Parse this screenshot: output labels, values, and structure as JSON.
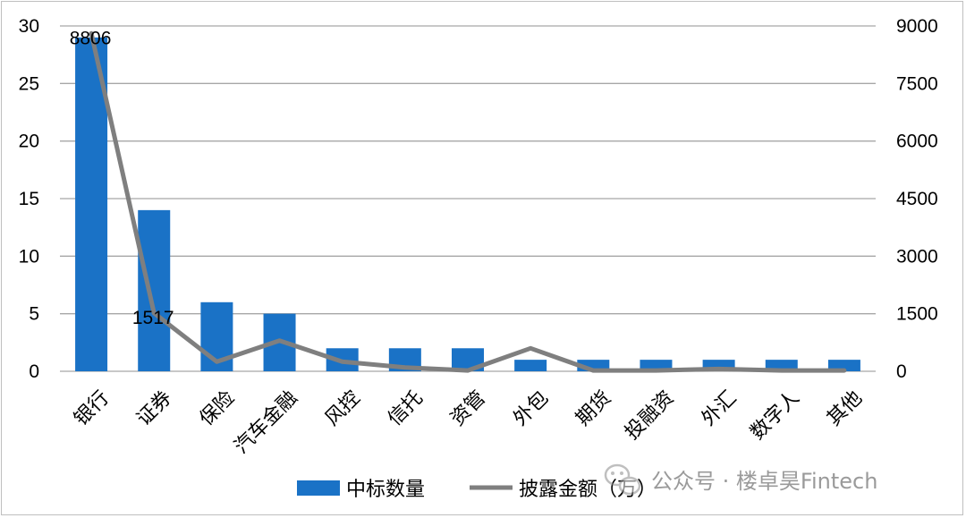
{
  "chart_data": {
    "type": "bar+line",
    "categories": [
      "银行",
      "证券",
      "保险",
      "汽车金融",
      "风控",
      "信托",
      "资管",
      "外包",
      "期货",
      "投融资",
      "外汇",
      "数字人",
      "其他"
    ],
    "series": [
      {
        "name": "中标数量",
        "type": "bar",
        "axis": "left",
        "color": "#1a72c6",
        "values": [
          29,
          14,
          6,
          5,
          2,
          2,
          2,
          1,
          1,
          1,
          1,
          1,
          1
        ]
      },
      {
        "name": "披露金额（万）",
        "type": "line",
        "axis": "right",
        "color": "#7f7f7f",
        "values": [
          8806,
          1517,
          250,
          800,
          250,
          100,
          20,
          600,
          20,
          20,
          60,
          20,
          20
        ]
      }
    ],
    "data_labels": [
      {
        "series": 1,
        "index": 0,
        "text": "8806"
      },
      {
        "series": 1,
        "index": 1,
        "text": "1517"
      }
    ],
    "y_left": {
      "min": 0,
      "max": 30,
      "ticks": [
        "0",
        "5",
        "10",
        "15",
        "20",
        "25",
        "30"
      ]
    },
    "y_right": {
      "min": 0,
      "max": 9000,
      "ticks": [
        "0",
        "1500",
        "3000",
        "4500",
        "6000",
        "7500",
        "9000"
      ]
    },
    "grid": true,
    "legend": "bottom-center"
  },
  "watermark": {
    "icon": "wechat-icon",
    "text": "公众号 · 楼卓昊Fintech"
  }
}
